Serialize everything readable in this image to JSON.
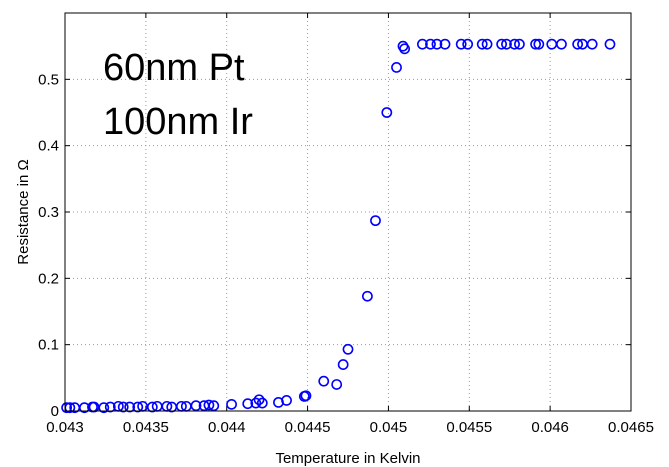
{
  "chart_data": {
    "type": "scatter",
    "xlabel": "Temperature in Kelvin",
    "ylabel": "Resistance in Ω",
    "xlim": [
      0.043,
      0.0465
    ],
    "ylim": [
      0,
      0.6
    ],
    "grid": true,
    "x_ticks": [
      "0.043",
      "0.0435",
      "0.044",
      "0.0445",
      "0.045",
      "0.0455",
      "0.046",
      "0.0465"
    ],
    "y_ticks": [
      "0",
      "0.1",
      "0.2",
      "0.3",
      "0.4",
      "0.5"
    ],
    "annotations": [
      "60nm Pt",
      "100nm Ir"
    ],
    "marker_color": "#0000ff",
    "series": [
      {
        "marker": "circle",
        "points": [
          [
            0.04301,
            0.005
          ],
          [
            0.04303,
            0.005
          ],
          [
            0.04306,
            0.005
          ],
          [
            0.04312,
            0.005
          ],
          [
            0.04317,
            0.006
          ],
          [
            0.04318,
            0.006
          ],
          [
            0.04324,
            0.005
          ],
          [
            0.04328,
            0.006
          ],
          [
            0.04333,
            0.007
          ],
          [
            0.04336,
            0.006
          ],
          [
            0.0434,
            0.006
          ],
          [
            0.04345,
            0.006
          ],
          [
            0.04348,
            0.007
          ],
          [
            0.04354,
            0.006
          ],
          [
            0.04357,
            0.007
          ],
          [
            0.04363,
            0.007
          ],
          [
            0.04366,
            0.006
          ],
          [
            0.04372,
            0.007
          ],
          [
            0.04375,
            0.007
          ],
          [
            0.04381,
            0.008
          ],
          [
            0.04386,
            0.008
          ],
          [
            0.04389,
            0.009
          ],
          [
            0.04392,
            0.008
          ],
          [
            0.04403,
            0.01
          ],
          [
            0.04413,
            0.011
          ],
          [
            0.04418,
            0.012
          ],
          [
            0.0442,
            0.017
          ],
          [
            0.04422,
            0.012
          ],
          [
            0.04432,
            0.013
          ],
          [
            0.04437,
            0.016
          ],
          [
            0.04448,
            0.022
          ],
          [
            0.04449,
            0.023
          ],
          [
            0.0446,
            0.045
          ],
          [
            0.04468,
            0.04
          ],
          [
            0.04472,
            0.07
          ],
          [
            0.04475,
            0.093
          ],
          [
            0.04487,
            0.173
          ],
          [
            0.04492,
            0.287
          ],
          [
            0.04499,
            0.45
          ],
          [
            0.04505,
            0.518
          ],
          [
            0.04509,
            0.55
          ],
          [
            0.0451,
            0.546
          ],
          [
            0.04521,
            0.553
          ],
          [
            0.04526,
            0.553
          ],
          [
            0.0453,
            0.553
          ],
          [
            0.04535,
            0.553
          ],
          [
            0.04545,
            0.553
          ],
          [
            0.04549,
            0.553
          ],
          [
            0.04558,
            0.553
          ],
          [
            0.04561,
            0.553
          ],
          [
            0.0457,
            0.553
          ],
          [
            0.04573,
            0.553
          ],
          [
            0.04578,
            0.553
          ],
          [
            0.04581,
            0.553
          ],
          [
            0.04591,
            0.553
          ],
          [
            0.04593,
            0.553
          ],
          [
            0.04601,
            0.553
          ],
          [
            0.04607,
            0.553
          ],
          [
            0.04617,
            0.553
          ],
          [
            0.0462,
            0.553
          ],
          [
            0.04626,
            0.553
          ],
          [
            0.04637,
            0.553
          ]
        ]
      }
    ]
  }
}
